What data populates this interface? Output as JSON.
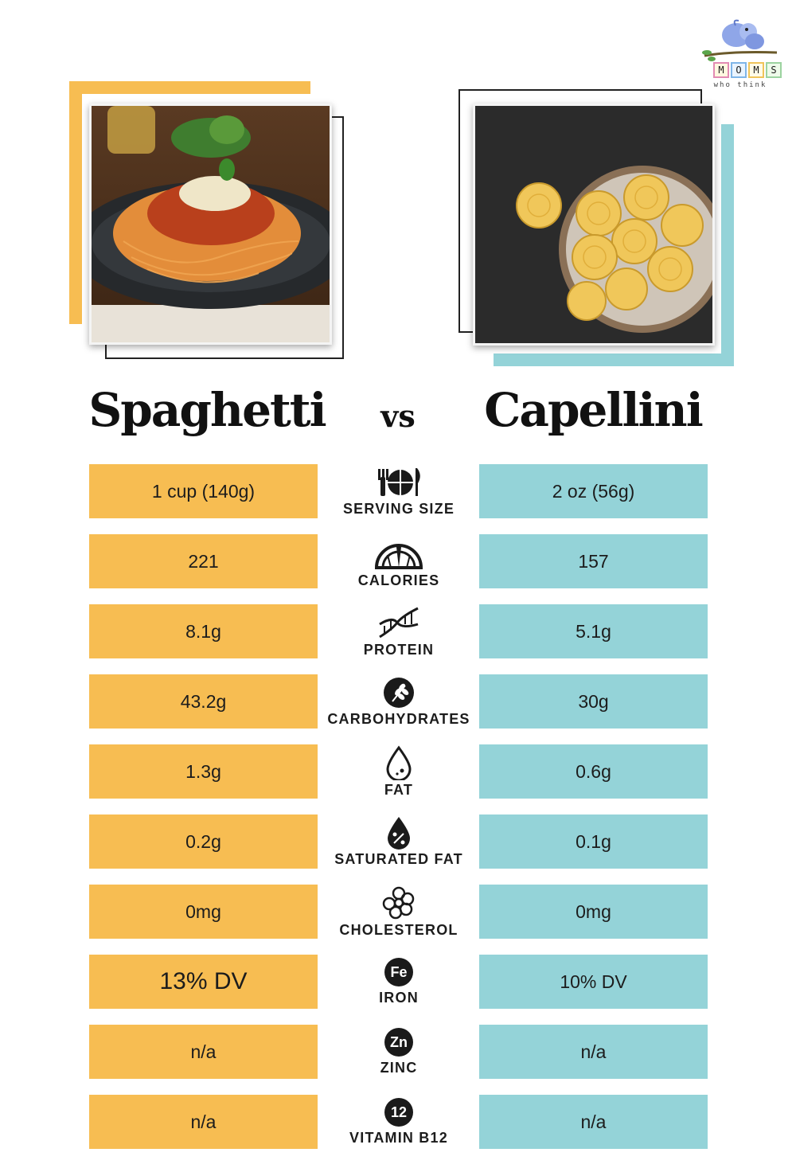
{
  "logo": {
    "letters": [
      "M",
      "O",
      "M",
      "S"
    ],
    "tagline": "who think"
  },
  "left_food": {
    "name": "Spaghetti"
  },
  "right_food": {
    "name": "Capellini"
  },
  "vs_label": "vs",
  "colors": {
    "left_accent": "#f7bd52",
    "right_accent": "#94d3d8"
  },
  "rows": [
    {
      "label": "SERVING SIZE",
      "icon": "plate-cutlery-icon",
      "left": "1 cup (140g)",
      "right": "2 oz (56g)"
    },
    {
      "label": "CALORIES",
      "icon": "gauge-icon",
      "left": "221",
      "right": "157"
    },
    {
      "label": "PROTEIN",
      "icon": "dna-icon",
      "left": "8.1g",
      "right": "5.1g"
    },
    {
      "label": "CARBOHYDRATES",
      "icon": "wheat-icon",
      "left": "43.2g",
      "right": "30g"
    },
    {
      "label": "FAT",
      "icon": "droplet-icon",
      "left": "1.3g",
      "right": "0.6g"
    },
    {
      "label": "SATURATED FAT",
      "icon": "droplet-percent-icon",
      "left": "0.2g",
      "right": "0.1g"
    },
    {
      "label": "CHOLESTEROL",
      "icon": "cholesterol-icon",
      "left": "0mg",
      "right": "0mg"
    },
    {
      "label": "IRON",
      "icon": "iron-icon",
      "badge": "Fe",
      "left": "13% DV",
      "right": "10% DV"
    },
    {
      "label": "ZINC",
      "icon": "zinc-icon",
      "badge": "Zn",
      "left": "n/a",
      "right": "n/a"
    },
    {
      "label": "VITAMIN B12",
      "icon": "vitamin-b12-icon",
      "badge": "12",
      "left": "n/a",
      "right": "n/a"
    }
  ]
}
